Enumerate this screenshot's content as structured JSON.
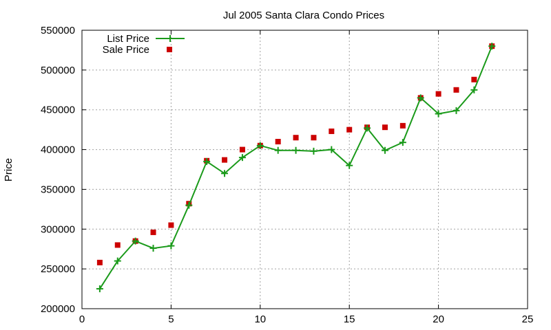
{
  "chart_data": {
    "type": "line",
    "title": "Jul 2005 Santa Clara Condo Prices",
    "xlabel": "",
    "ylabel": "Price",
    "xlim": [
      0,
      25
    ],
    "ylim": [
      200000,
      550000
    ],
    "xticks": [
      0,
      5,
      10,
      15,
      20,
      25
    ],
    "yticks": [
      200000,
      250000,
      300000,
      350000,
      400000,
      450000,
      500000,
      550000
    ],
    "grid": true,
    "legend_position": "top-left",
    "series": [
      {
        "name": "List Price",
        "style": "line-with-plus-markers",
        "color": "#1a9a1a",
        "x": [
          1,
          2,
          3,
          4,
          5,
          6,
          7,
          8,
          9,
          10,
          11,
          12,
          13,
          14,
          15,
          16,
          17,
          18,
          19,
          20,
          21,
          22,
          23
        ],
        "y": [
          225000,
          260000,
          285000,
          276000,
          279000,
          330000,
          385000,
          370000,
          390000,
          405000,
          399000,
          399000,
          398000,
          400000,
          380000,
          427000,
          399000,
          409000,
          465000,
          445000,
          449000,
          475000,
          530000
        ]
      },
      {
        "name": "Sale Price",
        "style": "square-markers",
        "color": "#cc0000",
        "x": [
          1,
          2,
          3,
          4,
          5,
          6,
          7,
          8,
          9,
          10,
          11,
          12,
          13,
          14,
          15,
          16,
          17,
          18,
          19,
          20,
          21,
          22,
          23
        ],
        "y": [
          258000,
          280000,
          285000,
          296000,
          305000,
          332000,
          386000,
          387000,
          400000,
          405000,
          410000,
          415000,
          415000,
          423000,
          425000,
          428000,
          428000,
          430000,
          465000,
          470000,
          475000,
          488000,
          530000
        ]
      }
    ]
  }
}
